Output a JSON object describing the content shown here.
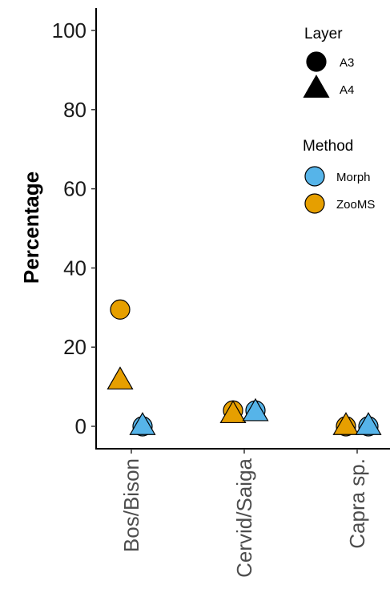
{
  "chart_data": {
    "type": "scatter",
    "ylabel": "Percentage",
    "ylim": [
      -5,
      105
    ],
    "yticks": [
      0,
      20,
      40,
      60,
      80,
      100
    ],
    "categories": [
      "Bos/Bison",
      "Cervid/Saiga",
      "Capra sp."
    ],
    "grid": false,
    "legend_placement": "top-right",
    "legends": [
      {
        "title": "Layer",
        "entries": [
          {
            "label": "A3",
            "shape": "circle"
          },
          {
            "label": "A4",
            "shape": "triangle"
          }
        ]
      },
      {
        "title": "Method",
        "entries": [
          {
            "label": "Morph",
            "color": "#56B4E9"
          },
          {
            "label": "ZooMS",
            "color": "#E69F00"
          }
        ]
      }
    ],
    "points": [
      {
        "category": "Bos/Bison",
        "method": "ZooMS",
        "layer": "A3",
        "y": 29.5
      },
      {
        "category": "Bos/Bison",
        "method": "ZooMS",
        "layer": "A4",
        "y": 11.5
      },
      {
        "category": "Bos/Bison",
        "method": "Morph",
        "layer": "A3",
        "y": 0
      },
      {
        "category": "Bos/Bison",
        "method": "Morph",
        "layer": "A4",
        "y": 0
      },
      {
        "category": "Cervid/Saiga",
        "method": "ZooMS",
        "layer": "A3",
        "y": 4
      },
      {
        "category": "Cervid/Saiga",
        "method": "ZooMS",
        "layer": "A4",
        "y": 3
      },
      {
        "category": "Cervid/Saiga",
        "method": "Morph",
        "layer": "A3",
        "y": 4
      },
      {
        "category": "Cervid/Saiga",
        "method": "Morph",
        "layer": "A4",
        "y": 3.5
      },
      {
        "category": "Capra sp.",
        "method": "ZooMS",
        "layer": "A3",
        "y": 0
      },
      {
        "category": "Capra sp.",
        "method": "ZooMS",
        "layer": "A4",
        "y": 0
      },
      {
        "category": "Capra sp.",
        "method": "Morph",
        "layer": "A3",
        "y": 0
      },
      {
        "category": "Capra sp.",
        "method": "Morph",
        "layer": "A4",
        "y": 0
      }
    ]
  }
}
